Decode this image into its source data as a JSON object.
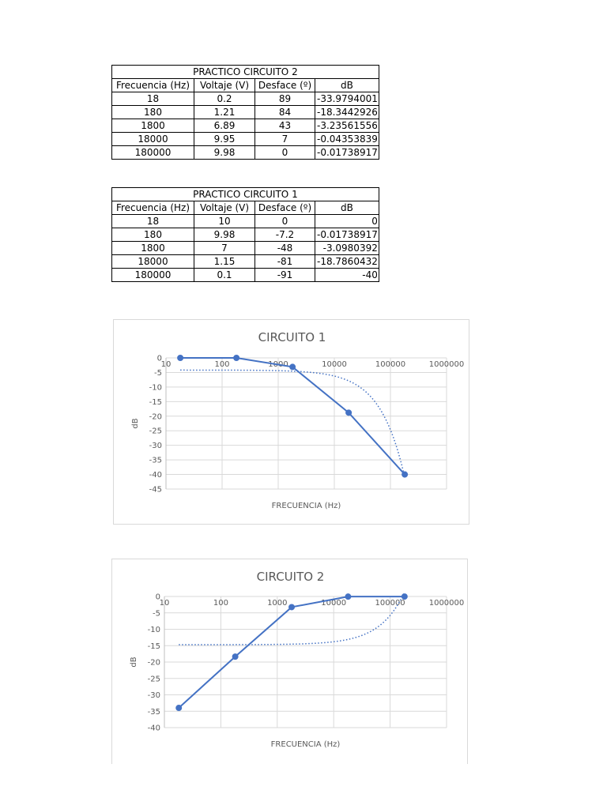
{
  "tables": [
    {
      "title": "PRACTICO CIRCUITO 2",
      "headers": [
        "Frecuencia (Hz)",
        "Voltaje (V)",
        "Desface (º)",
        "dB"
      ],
      "rows": [
        [
          "18",
          "0.2",
          "89",
          "-33.9794001"
        ],
        [
          "180",
          "1.21",
          "84",
          "-18.3442926"
        ],
        [
          "1800",
          "6.89",
          "43",
          "-3.23561556"
        ],
        [
          "18000",
          "9.95",
          "7",
          "-0.04353839"
        ],
        [
          "180000",
          "9.98",
          "0",
          "-0.01738917"
        ]
      ]
    },
    {
      "title": "PRACTICO CIRCUITO 1",
      "headers": [
        "Frecuencia (Hz)",
        "Voltaje (V)",
        "Desface (º)",
        "dB"
      ],
      "rows": [
        [
          "18",
          "10",
          "0",
          "0"
        ],
        [
          "180",
          "9.98",
          "-7.2",
          "-0.01738917"
        ],
        [
          "1800",
          "7",
          "-48",
          "-3.0980392"
        ],
        [
          "18000",
          "1.15",
          "-81",
          "-18.7860432"
        ],
        [
          "180000",
          "0.1",
          "-91",
          "-40"
        ]
      ]
    }
  ],
  "chart_data": [
    {
      "type": "line",
      "title": "CIRCUITO 1",
      "xlabel": "FRECUENCIA (Hz)",
      "ylabel": "dB",
      "x_scale": "log",
      "xlim": [
        10,
        1000000
      ],
      "ylim": [
        -45,
        0
      ],
      "x_ticks": [
        10,
        100,
        1000,
        10000,
        100000,
        1000000
      ],
      "y_ticks": [
        0,
        -5,
        -10,
        -15,
        -20,
        -25,
        -30,
        -35,
        -40,
        -45
      ],
      "grid": true,
      "series": [
        {
          "x": [
            18,
            180,
            1800,
            18000,
            180000
          ],
          "y": [
            0,
            0,
            -3.1,
            -18.79,
            -40
          ]
        }
      ],
      "trendline": {
        "style": "dotted",
        "kind": "linear",
        "color": "#4472c4"
      },
      "color": "#4472c4"
    },
    {
      "type": "line",
      "title": "CIRCUITO 2",
      "xlabel": "FRECUENCIA (Hz)",
      "ylabel": "dB",
      "x_scale": "log",
      "xlim": [
        10,
        1000000
      ],
      "ylim": [
        -40,
        0
      ],
      "x_ticks": [
        10,
        100,
        1000,
        10000,
        100000,
        1000000
      ],
      "y_ticks": [
        0,
        -5,
        -10,
        -15,
        -20,
        -25,
        -30,
        -35,
        -40
      ],
      "grid": true,
      "series": [
        {
          "x": [
            18,
            180,
            1800,
            18000,
            180000
          ],
          "y": [
            -33.98,
            -18.34,
            -3.24,
            -0.04,
            -0.02
          ]
        }
      ],
      "trendline": {
        "style": "dotted",
        "kind": "linear",
        "color": "#4472c4"
      },
      "color": "#4472c4"
    }
  ]
}
